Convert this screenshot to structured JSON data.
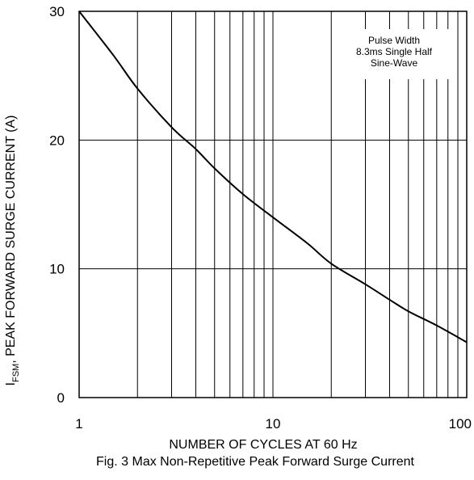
{
  "chart_data": {
    "type": "line",
    "title": "",
    "caption": "Fig. 3 Max Non-Repetitive Peak Forward Surge Current",
    "xlabel": "NUMBER OF CYCLES AT 60 Hz",
    "ylabel_main": "I",
    "ylabel_sub": "FSM",
    "ylabel_rest": ", PEAK FORWARD SURGE CURRENT (A)",
    "x_scale": "log",
    "xlim": [
      1,
      100
    ],
    "ylim": [
      0,
      30
    ],
    "x_ticks": [
      {
        "value": 1,
        "label": "1"
      },
      {
        "value": 10,
        "label": "10"
      },
      {
        "value": 100,
        "label": "100"
      }
    ],
    "y_ticks": [
      {
        "value": 0,
        "label": "0"
      },
      {
        "value": 10,
        "label": "10"
      },
      {
        "value": 20,
        "label": "20"
      },
      {
        "value": 30,
        "label": "30"
      }
    ],
    "grid": true,
    "annotation_lines": [
      "Pulse Width",
      "8.3ms Single Half",
      "Sine-Wave"
    ],
    "series": [
      {
        "x": [
          1,
          1.5,
          2,
          3,
          4,
          5,
          7,
          10,
          15,
          20,
          30,
          40,
          50,
          70,
          100
        ],
        "values": [
          30,
          26.6,
          24,
          21,
          19.3,
          17.8,
          15.8,
          14,
          12,
          10.4,
          8.8,
          7.6,
          6.7,
          5.6,
          4.3
        ]
      }
    ]
  }
}
